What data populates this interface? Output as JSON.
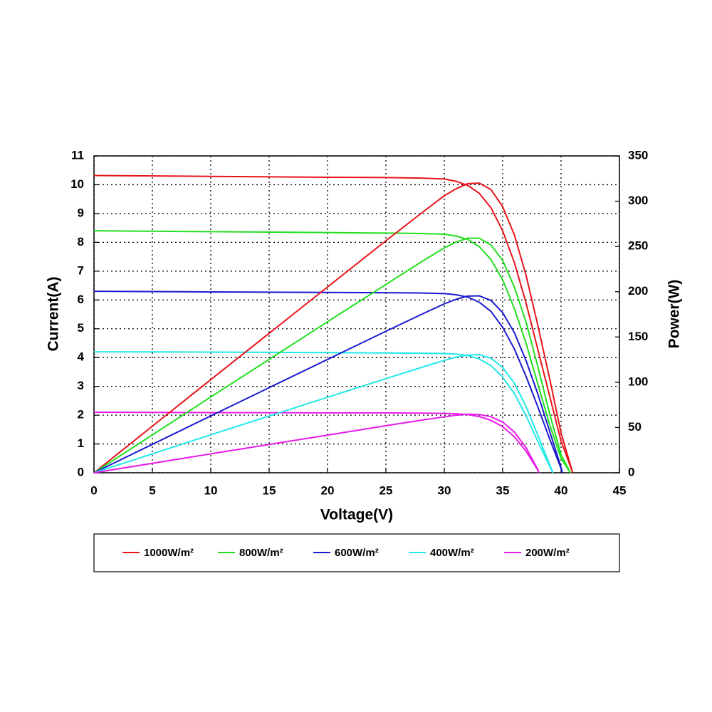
{
  "chart_data": {
    "type": "line",
    "xlabel": "Voltage(V)",
    "ylabel": "Current(A)",
    "y2label": "Power(W)",
    "xlim": [
      0,
      45
    ],
    "xticks": [
      0,
      5,
      10,
      15,
      20,
      25,
      30,
      35,
      40,
      45
    ],
    "ylim": [
      0,
      11
    ],
    "yticks": [
      0,
      1,
      2,
      3,
      4,
      5,
      6,
      7,
      8,
      9,
      10,
      11
    ],
    "y2lim": [
      0,
      350
    ],
    "y2ticks": [
      0,
      50,
      100,
      150,
      200,
      250,
      300,
      350
    ],
    "grid": true,
    "legend": "bottom",
    "series": [
      {
        "name": "1000W/m²",
        "color": "#e8141a",
        "x": [
          0,
          10,
          20,
          25,
          28,
          30,
          31,
          32,
          33,
          34,
          35,
          36,
          37,
          38,
          39,
          40,
          41
        ],
        "values": [
          10.32,
          10.29,
          10.26,
          10.25,
          10.23,
          10.2,
          10.12,
          9.98,
          9.7,
          9.2,
          8.4,
          7.3,
          5.9,
          4.3,
          2.7,
          1.1,
          0
        ]
      },
      {
        "name": "800W/m²",
        "color": "#22e01e",
        "x": [
          0,
          10,
          20,
          25,
          28,
          30,
          31,
          32,
          33,
          34,
          35,
          36,
          37,
          38,
          39,
          40,
          40.8
        ],
        "values": [
          8.4,
          8.37,
          8.34,
          8.32,
          8.31,
          8.28,
          8.22,
          8.1,
          7.85,
          7.4,
          6.7,
          5.7,
          4.5,
          3.1,
          1.7,
          0.5,
          0
        ]
      },
      {
        "name": "600W/m²",
        "color": "#1a1ad0",
        "x": [
          0,
          10,
          20,
          25,
          28,
          30,
          31,
          32,
          33,
          34,
          35,
          36,
          37,
          38,
          39,
          40,
          40.1
        ],
        "values": [
          6.3,
          6.28,
          6.26,
          6.25,
          6.24,
          6.22,
          6.18,
          6.1,
          5.92,
          5.6,
          5.05,
          4.3,
          3.35,
          2.3,
          1.2,
          0.15,
          0
        ]
      },
      {
        "name": "400W/m²",
        "color": "#22e8e8",
        "x": [
          0,
          10,
          20,
          25,
          28,
          30,
          31,
          32,
          33,
          34,
          35,
          36,
          37,
          38,
          39,
          39.3
        ],
        "values": [
          4.2,
          4.19,
          4.17,
          4.16,
          4.15,
          4.14,
          4.12,
          4.07,
          3.95,
          3.72,
          3.32,
          2.75,
          1.98,
          1.1,
          0.25,
          0
        ]
      },
      {
        "name": "200W/m²",
        "color": "#e81ae8",
        "x": [
          0,
          10,
          20,
          25,
          28,
          30,
          31,
          32,
          33,
          34,
          35,
          36,
          37,
          38,
          38.1
        ],
        "values": [
          2.1,
          2.09,
          2.08,
          2.08,
          2.07,
          2.06,
          2.05,
          2.02,
          1.95,
          1.82,
          1.6,
          1.25,
          0.75,
          0.1,
          0
        ]
      },
      {
        "color": "#e8141a",
        "axis": "y2",
        "x": [
          0,
          10,
          20,
          25,
          28,
          30,
          31,
          32,
          33,
          34,
          35,
          36,
          37,
          38,
          39,
          40,
          41
        ],
        "values": [
          0,
          102.9,
          205.2,
          256.3,
          286.4,
          306,
          313.7,
          319.4,
          320,
          312.8,
          294,
          262.8,
          218.3,
          163.4,
          105.3,
          44,
          0
        ]
      },
      {
        "color": "#22e01e",
        "axis": "y2",
        "x": [
          0,
          10,
          20,
          25,
          28,
          30,
          31,
          32,
          33,
          34,
          35,
          36,
          37,
          38,
          39,
          40,
          40.8
        ],
        "values": [
          0,
          83.7,
          166.8,
          208,
          232.7,
          248.4,
          254.8,
          259.2,
          259.1,
          251.6,
          234.5,
          205.2,
          166.5,
          117.8,
          66.3,
          20,
          0
        ]
      },
      {
        "color": "#1a1ad0",
        "axis": "y2",
        "x": [
          0,
          10,
          20,
          25,
          28,
          30,
          31,
          32,
          33,
          34,
          35,
          36,
          37,
          38,
          39,
          40,
          40.1
        ],
        "values": [
          0,
          62.8,
          125.2,
          156.3,
          174.7,
          186.6,
          191.6,
          195.2,
          195.4,
          190.4,
          176.8,
          154.8,
          124,
          87.4,
          46.8,
          6,
          0
        ]
      },
      {
        "color": "#22e8e8",
        "axis": "y2",
        "x": [
          0,
          10,
          20,
          25,
          28,
          30,
          31,
          32,
          33,
          34,
          35,
          36,
          37,
          38,
          39,
          39.3
        ],
        "values": [
          0,
          41.9,
          83.4,
          104,
          116.2,
          124.2,
          127.7,
          130.2,
          130.4,
          126.5,
          116.2,
          99,
          73.3,
          41.8,
          9.8,
          0
        ]
      },
      {
        "color": "#e81ae8",
        "axis": "y2",
        "x": [
          0,
          10,
          20,
          25,
          28,
          30,
          31,
          32,
          33,
          34,
          35,
          36,
          37,
          38,
          38.1
        ],
        "values": [
          0,
          20.9,
          41.6,
          52,
          58,
          61.8,
          63.6,
          64.6,
          64.4,
          61.9,
          56,
          45,
          27.8,
          3.8,
          0
        ]
      }
    ]
  }
}
